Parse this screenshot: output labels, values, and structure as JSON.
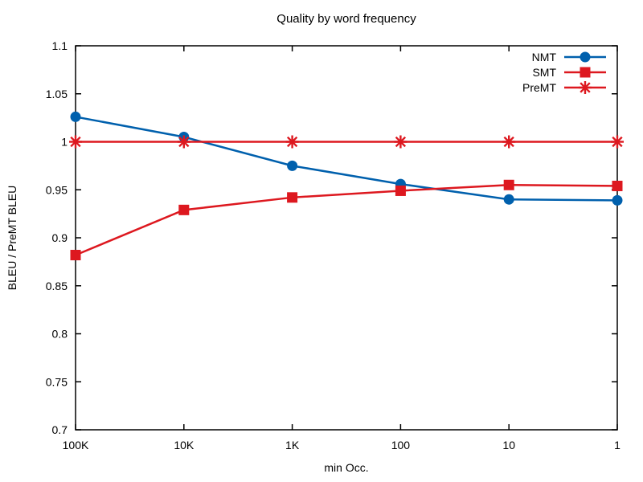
{
  "chart_data": {
    "type": "line",
    "title": "Quality by word frequency",
    "xlabel": "min Occ.",
    "ylabel": "BLEU / PreMT BLEU",
    "categories": [
      "100K",
      "10K",
      "1K",
      "100",
      "10",
      "1"
    ],
    "x_axis_scale_note": "log-scale occurrence thresholds, descending, evenly spaced",
    "ylim": [
      0.7,
      1.1
    ],
    "ytick_values": [
      0.7,
      0.75,
      0.8,
      0.85,
      0.9,
      0.95,
      1.0,
      1.05,
      1.1
    ],
    "ytick_labels": [
      "0.7",
      "0.75",
      "0.8",
      "0.85",
      "0.9",
      "0.95",
      "1",
      "1.05",
      "1.1"
    ],
    "grid": false,
    "legend_position": "top-right-inside",
    "colors": {
      "nmt_blue": "#0060ad",
      "smt_red": "#dd181f",
      "axis_black": "#000000"
    },
    "series": [
      {
        "name": "NMT",
        "color": "#0060ad",
        "marker": "circle",
        "values": [
          1.026,
          1.005,
          0.975,
          0.956,
          0.94,
          0.939
        ]
      },
      {
        "name": "SMT",
        "color": "#dd181f",
        "marker": "square",
        "values": [
          0.882,
          0.929,
          0.942,
          0.949,
          0.955,
          0.954
        ]
      },
      {
        "name": "PreMT",
        "color": "#dd181f",
        "marker": "asterisk",
        "values": [
          1.0,
          1.0,
          1.0,
          1.0,
          1.0,
          1.0
        ]
      }
    ]
  }
}
